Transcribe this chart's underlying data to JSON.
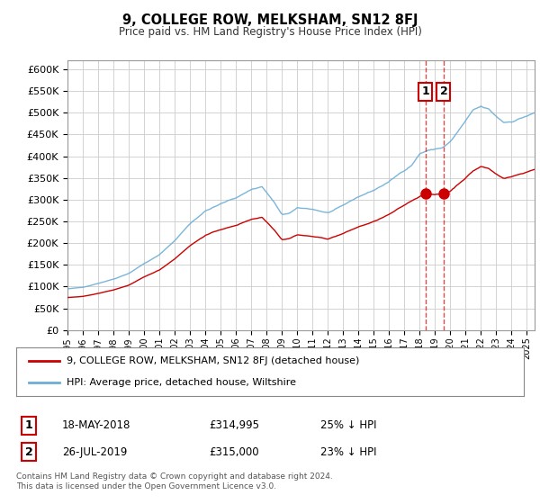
{
  "title": "9, COLLEGE ROW, MELKSHAM, SN12 8FJ",
  "subtitle": "Price paid vs. HM Land Registry's House Price Index (HPI)",
  "ylabel_ticks": [
    "£0",
    "£50K",
    "£100K",
    "£150K",
    "£200K",
    "£250K",
    "£300K",
    "£350K",
    "£400K",
    "£450K",
    "£500K",
    "£550K",
    "£600K"
  ],
  "ytick_values": [
    0,
    50000,
    100000,
    150000,
    200000,
    250000,
    300000,
    350000,
    400000,
    450000,
    500000,
    550000,
    600000
  ],
  "background_color": "#ffffff",
  "grid_color": "#cccccc",
  "hpi_color": "#6baed6",
  "price_color": "#cc0000",
  "transaction1_date": 2018.37,
  "transaction1_price": 314995,
  "transaction2_date": 2019.56,
  "transaction2_price": 315000,
  "legend1_label": "9, COLLEGE ROW, MELKSHAM, SN12 8FJ (detached house)",
  "legend2_label": "HPI: Average price, detached house, Wiltshire",
  "footer": "Contains HM Land Registry data © Crown copyright and database right 2024.\nThis data is licensed under the Open Government Licence v3.0.",
  "xmin": 1995.0,
  "xmax": 2025.5,
  "ymin": 0,
  "ymax": 620000,
  "fig_width": 6.0,
  "fig_height": 5.6,
  "dpi": 100
}
